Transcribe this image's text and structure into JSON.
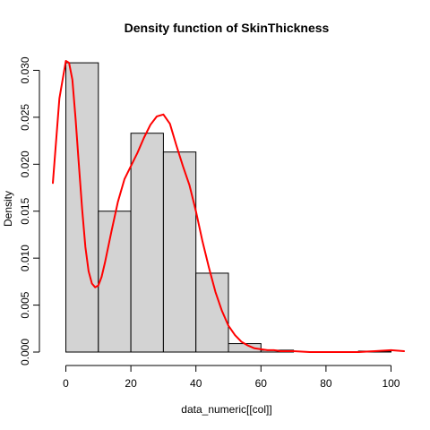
{
  "chart_data": {
    "type": "histogram",
    "title": "Density function of SkinThickness",
    "xlabel": "data_numeric[[col]]",
    "ylabel": "Density",
    "xlim": [
      -4,
      104
    ],
    "ylim": [
      0,
      0.031
    ],
    "xticks": [
      0,
      20,
      40,
      60,
      80,
      100
    ],
    "xtick_labels": [
      "0",
      "20",
      "40",
      "60",
      "80",
      "100"
    ],
    "yticks": [
      0,
      0.005,
      0.01,
      0.015,
      0.02,
      0.025,
      0.03
    ],
    "ytick_labels": [
      "0.000",
      "0.005",
      "0.010",
      "0.015",
      "0.020",
      "0.025",
      "0.030"
    ],
    "grid": false,
    "bin_edges": [
      0,
      10,
      20,
      30,
      40,
      50,
      60,
      70,
      80,
      90,
      100
    ],
    "density": [
      0.0308,
      0.015,
      0.0233,
      0.0213,
      0.0084,
      0.0009,
      0.0002,
      0.0,
      0.0,
      0.0001
    ],
    "bar_fill": "#d3d3d3",
    "line_color": "#ff0000",
    "density_curve": {
      "x": [
        -4,
        -2,
        0,
        1,
        2,
        3,
        4,
        5,
        6,
        7,
        8,
        9,
        10,
        11,
        12,
        14,
        16,
        18,
        20,
        22,
        24,
        26,
        28,
        30,
        32,
        34,
        36,
        38,
        40,
        42,
        44,
        46,
        48,
        50,
        52,
        54,
        56,
        58,
        60,
        62,
        64,
        66,
        68,
        70,
        75,
        80,
        85,
        90,
        95,
        100,
        104
      ],
      "y": [
        0.018,
        0.027,
        0.031,
        0.0308,
        0.029,
        0.0248,
        0.02,
        0.0152,
        0.0112,
        0.0086,
        0.0073,
        0.0069,
        0.0071,
        0.008,
        0.0095,
        0.0128,
        0.016,
        0.0184,
        0.0198,
        0.0212,
        0.0228,
        0.0242,
        0.0251,
        0.0253,
        0.0243,
        0.022,
        0.0198,
        0.0178,
        0.015,
        0.0118,
        0.009,
        0.0064,
        0.0044,
        0.0028,
        0.0018,
        0.0011,
        0.0007,
        0.0004,
        0.0003,
        0.0002,
        0.0002,
        0.0001,
        0.0001,
        0.0001,
        0.0,
        0.0,
        0.0,
        0.0,
        0.0001,
        0.0002,
        0.0001
      ]
    }
  }
}
